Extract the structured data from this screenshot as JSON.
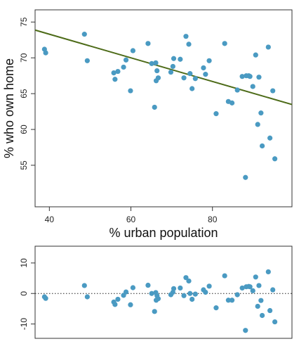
{
  "chart_data": [
    {
      "type": "scatter",
      "title": "",
      "xlabel": "% urban population",
      "ylabel": "% who own home",
      "xlim": [
        36.5,
        99.5
      ],
      "ylim": [
        49.2,
        76.7
      ],
      "xticks": [
        "40",
        "60",
        "80"
      ],
      "yticks": [
        "55",
        "60",
        "65",
        "70",
        "75"
      ],
      "x": [
        38.8,
        39.1,
        48.6,
        49.3,
        55.8,
        56.1,
        56.8,
        58.2,
        58.8,
        59.9,
        60.5,
        64.2,
        65.1,
        66.1,
        66.4,
        66.7,
        66.2,
        65.8,
        69.8,
        70.3,
        70.5,
        72.1,
        73.0,
        73.5,
        74.5,
        74.2,
        75.0,
        75.8,
        77.8,
        78.3,
        79.2,
        80.9,
        83.0,
        83.9,
        84.8,
        86.1,
        87.3,
        88.1,
        88.3,
        88.9,
        89.2,
        89.9,
        90.6,
        91.1,
        91.4,
        91.9,
        92.2,
        93.7,
        94.1,
        94.8,
        95.3
      ],
      "y": [
        71.2,
        70.7,
        73.3,
        69.6,
        67.9,
        67.0,
        68.1,
        68.7,
        69.7,
        65.4,
        71.0,
        72.0,
        69.2,
        69.3,
        68.2,
        67.2,
        66.8,
        63.1,
        68.0,
        68.8,
        69.9,
        69.8,
        67.2,
        73.0,
        67.8,
        71.9,
        65.7,
        67.1,
        68.6,
        67.7,
        69.6,
        62.2,
        72.0,
        63.9,
        63.7,
        65.5,
        67.4,
        53.3,
        67.5,
        67.5,
        67.4,
        66.0,
        70.4,
        60.7,
        67.3,
        62.3,
        57.7,
        71.5,
        58.8,
        65.4,
        55.9
      ],
      "trendline": {
        "intercept": 79.9,
        "slope": -0.165
      },
      "point_color": "#4a9ac2",
      "line_color": "#4d6b18",
      "grid": false,
      "legend": "none"
    },
    {
      "type": "scatter",
      "title": "",
      "xlabel": "",
      "ylabel": "",
      "xlim": [
        36.5,
        99.5
      ],
      "ylim": [
        -14.7,
        15.5
      ],
      "yticks": [
        "10",
        "0",
        "-10"
      ],
      "reference_line": {
        "y": 0,
        "style": "dotted"
      },
      "x": [
        38.8,
        39.1,
        48.6,
        49.3,
        55.8,
        56.1,
        56.8,
        58.2,
        58.8,
        59.9,
        60.5,
        64.2,
        65.1,
        66.1,
        66.4,
        66.7,
        66.2,
        65.8,
        69.8,
        70.3,
        70.5,
        72.1,
        73.0,
        73.5,
        74.5,
        74.2,
        75.0,
        75.8,
        77.8,
        78.3,
        79.2,
        80.9,
        83.0,
        83.9,
        84.8,
        86.1,
        87.3,
        88.1,
        88.3,
        88.9,
        89.2,
        89.9,
        90.6,
        91.1,
        91.4,
        91.9,
        92.2,
        93.7,
        94.1,
        94.8,
        95.3
      ],
      "y": [
        -1.1,
        -1.6,
        2.6,
        -1.1,
        -2.8,
        -3.6,
        -1.9,
        -0.6,
        0.5,
        -3.7,
        1.9,
        2.7,
        0.0,
        0.3,
        -0.7,
        -1.7,
        -2.2,
        -5.9,
        -0.4,
        0.4,
        1.6,
        1.8,
        -0.7,
        5.2,
        0.0,
        4.1,
        -1.9,
        -0.2,
        1.2,
        0.4,
        2.4,
        -4.7,
        5.8,
        -2.2,
        -2.2,
        -0.4,
        1.8,
        -12.1,
        2.2,
        2.3,
        2.2,
        0.9,
        5.4,
        -4.2,
        2.6,
        -2.3,
        -7.2,
        7.1,
        -5.6,
        1.2,
        -9.3
      ],
      "point_color": "#4a9ac2",
      "grid": false,
      "legend": "none"
    }
  ]
}
